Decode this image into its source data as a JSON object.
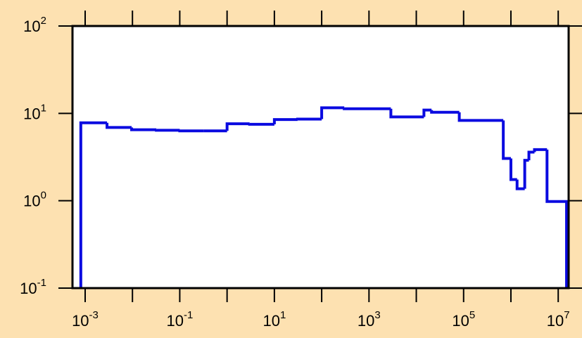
{
  "chart_data": {
    "type": "histogram",
    "log_x": true,
    "log_y": true,
    "bins": [
      0.00081,
      0.0029,
      0.0096,
      0.032,
      0.1,
      0.32,
      1,
      3,
      10,
      31,
      100,
      300,
      2900,
      14500,
      21000,
      81000,
      690000,
      1000000,
      1350000,
      1960000,
      2400000,
      3150000,
      5800000,
      15000000
    ],
    "values": [
      7.8,
      6.9,
      6.5,
      6.4,
      6.3,
      6.3,
      7.6,
      7.5,
      8.5,
      8.6,
      11.6,
      11.3,
      9.1,
      10.9,
      10.3,
      8.3,
      3.05,
      1.75,
      1.37,
      2.9,
      3.6,
      3.85,
      0.98
    ],
    "color": "#0a0ae0",
    "xlim": [
      0.00054,
      16600000
    ],
    "ylim": [
      0.1,
      100
    ],
    "xticks": [
      {
        "value": 0.001,
        "base": "10",
        "exp": "-3"
      },
      {
        "value": 0.1,
        "base": "10",
        "exp": "-1"
      },
      {
        "value": 10,
        "base": "10",
        "exp": "1"
      },
      {
        "value": 1000,
        "base": "10",
        "exp": "3"
      },
      {
        "value": 100000,
        "base": "10",
        "exp": "5"
      },
      {
        "value": 10000000,
        "base": "10",
        "exp": "7"
      }
    ],
    "xminorticks": [
      0.01,
      1,
      100,
      10000,
      1000000
    ],
    "yticks": [
      {
        "value": 0.1,
        "base": "10",
        "exp": "-1"
      },
      {
        "value": 1,
        "base": "10",
        "exp": "0"
      },
      {
        "value": 10,
        "base": "10",
        "exp": "1"
      },
      {
        "value": 100,
        "base": "10",
        "exp": "2"
      }
    ]
  }
}
